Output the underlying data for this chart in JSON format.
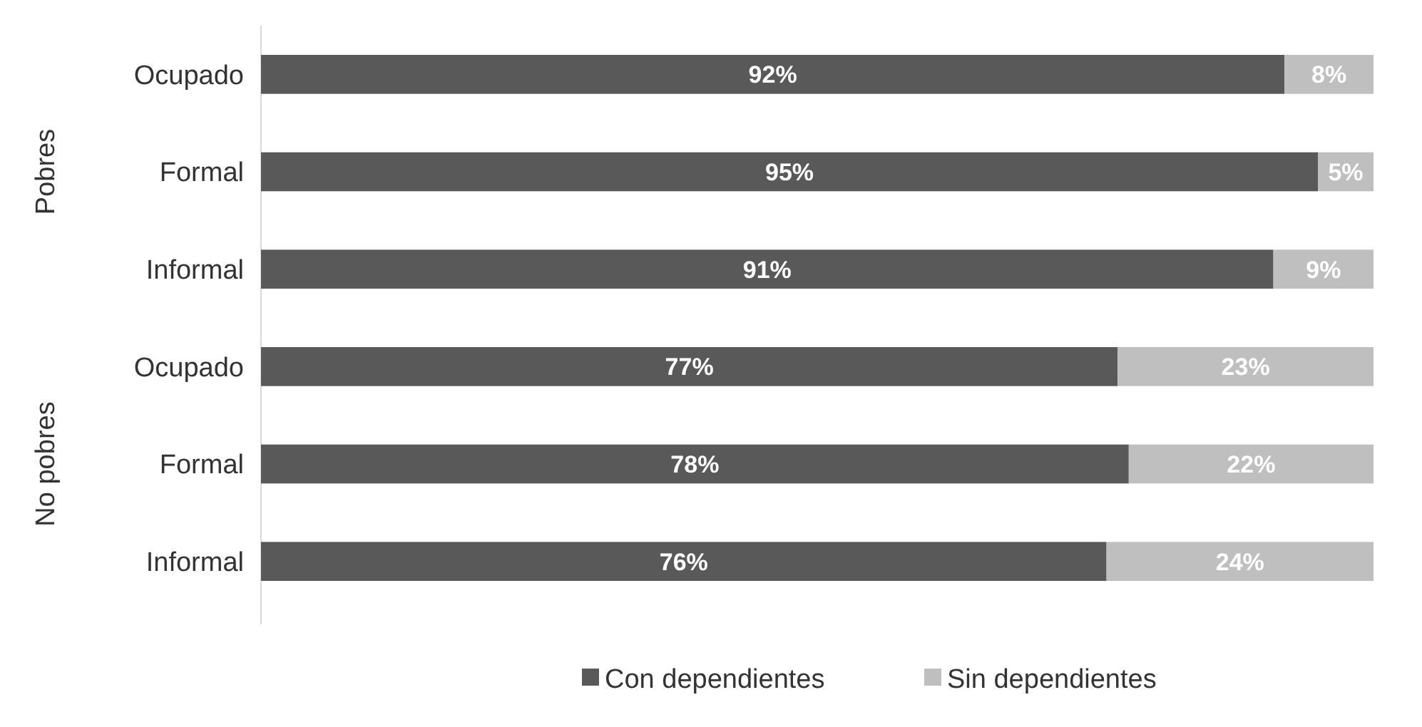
{
  "chart_data": {
    "type": "bar",
    "orientation": "horizontal",
    "stacked": true,
    "categories": [
      "Ocupado",
      "Formal",
      "Informal",
      "Ocupado",
      "Formal",
      "Informal"
    ],
    "series": [
      {
        "name": "Con dependientes",
        "color": "#595959",
        "values": [
          92,
          95,
          91,
          77,
          78,
          76
        ],
        "value_labels": [
          "92%",
          "95%",
          "91%",
          "77%",
          "78%",
          "76%"
        ]
      },
      {
        "name": "Sin dependientes",
        "color": "#bfbfbf",
        "values": [
          8,
          5,
          9,
          23,
          22,
          24
        ],
        "value_labels": [
          "8%",
          "5%",
          "9%",
          "23%",
          "22%",
          "24%"
        ]
      }
    ],
    "annotations": [
      "Pobres",
      "No pobres"
    ],
    "legend": "bottom"
  }
}
